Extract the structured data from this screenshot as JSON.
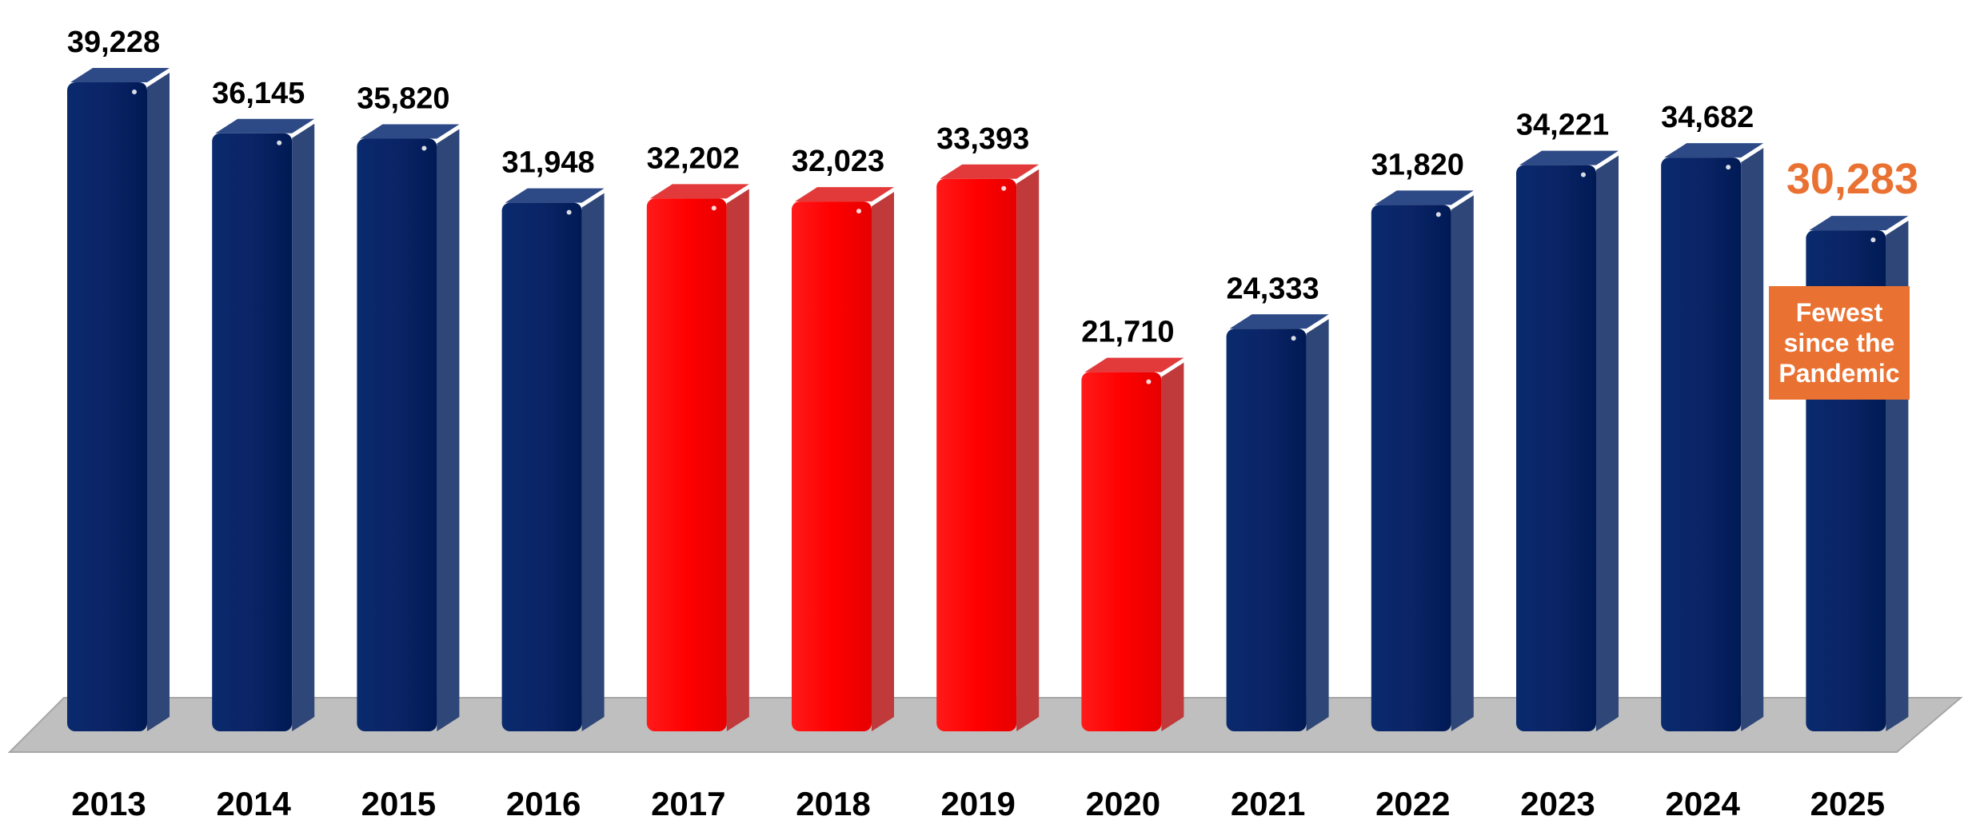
{
  "chart_data": {
    "type": "bar",
    "title": "",
    "xlabel": "",
    "ylabel": "",
    "ylim": [
      0,
      40000
    ],
    "categories": [
      "2013",
      "2014",
      "2015",
      "2016",
      "2017",
      "2018",
      "2019",
      "2020",
      "2021",
      "2022",
      "2023",
      "2024",
      "2025"
    ],
    "values": [
      39228,
      36145,
      35820,
      31948,
      32202,
      32023,
      33393,
      21710,
      24333,
      31820,
      34221,
      34682,
      30283
    ],
    "value_labels": [
      "39,228",
      "36,145",
      "35,820",
      "31,948",
      "32,202",
      "32,023",
      "33,393",
      "21,710",
      "24,333",
      "31,820",
      "34,221",
      "34,682",
      "30,283"
    ],
    "bar_colors": [
      "#002060",
      "#002060",
      "#002060",
      "#002060",
      "#FF0000",
      "#FF0000",
      "#FF0000",
      "#FF0000",
      "#002060",
      "#002060",
      "#002060",
      "#002060",
      "#002060"
    ],
    "highlight_index": 12,
    "highlight_label_color": "#E97132",
    "grid": false,
    "legend": "none",
    "annotation": {
      "text": "Fewest\nsince the\nPandemic",
      "background": "#E97132",
      "color": "#FFFFFF"
    }
  }
}
